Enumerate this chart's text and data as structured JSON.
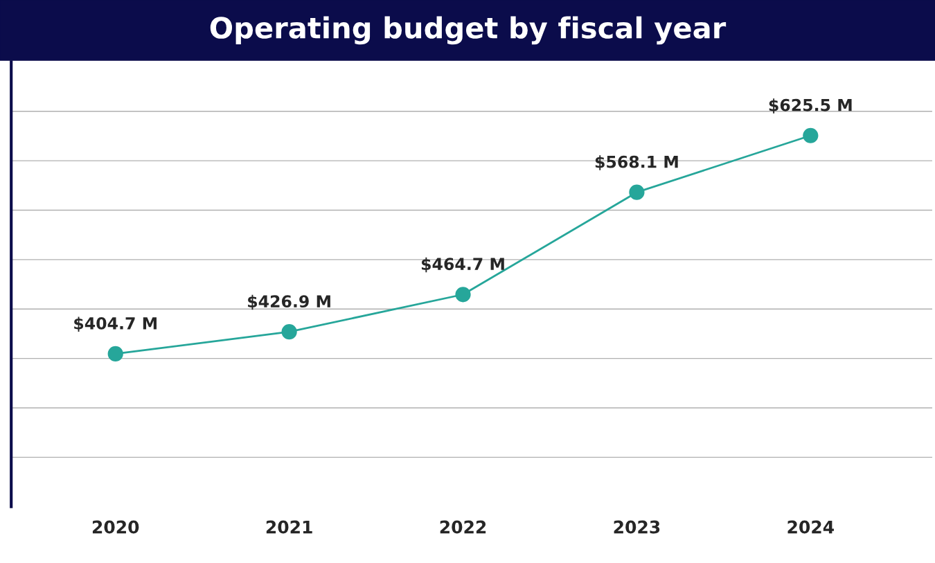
{
  "chart_data": {
    "type": "line",
    "title": "Operating budget by fiscal year",
    "categories": [
      "2020",
      "2021",
      "2022",
      "2023",
      "2024"
    ],
    "series": [
      {
        "color": "#26a69a",
        "values": [
          404.7,
          426.9,
          464.7,
          568.1,
          625.5
        ],
        "value_labels": [
          "$404.7 M",
          "$426.9 M",
          "$464.7 M",
          "$568.1 M",
          "$625.5 M"
        ]
      }
    ],
    "ylim": [
      250,
      700
    ],
    "yticks": [
      {
        "value": 300,
        "label": null
      },
      {
        "value": 350,
        "label": null
      },
      {
        "value": 400,
        "label": null
      },
      {
        "value": 450,
        "label": null
      },
      {
        "value": 500,
        "label": null
      },
      {
        "value": 550,
        "label": null
      },
      {
        "value": 600,
        "label": null
      },
      {
        "value": 650,
        "label": null
      }
    ],
    "grid": "y",
    "marker": "circle",
    "line_style": "solid",
    "legend": false,
    "tick_labels": "x"
  }
}
